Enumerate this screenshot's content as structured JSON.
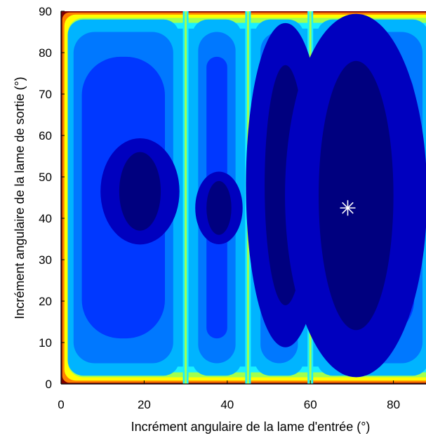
{
  "chart_data": {
    "type": "heatmap",
    "subtype": "filled-contour",
    "title": "",
    "xlabel": "Incrément angulaire de la lame d'entrée (°)",
    "ylabel": "Incrément angulaire de la lame de sortie (°)",
    "xlim": [
      0,
      90
    ],
    "ylim": [
      0,
      90
    ],
    "x_ticks": [
      0,
      20,
      40,
      60,
      80
    ],
    "y_ticks": [
      0,
      10,
      20,
      30,
      40,
      50,
      60,
      70,
      80,
      90
    ],
    "colormap": "jet",
    "grid": false,
    "legend": "none",
    "colors": {
      "level1": "#00007f",
      "level2": "#0000bf",
      "level3": "#0038ff",
      "level4": "#0078ff",
      "level5": "#00b4ff",
      "level6": "#18f0ff",
      "level7": "#a0ff50",
      "level8": "#ffff00",
      "level9": "#ff8000",
      "level10": "#800000"
    },
    "cells": [
      {
        "x_range": [
          0,
          30
        ],
        "inner_region": {
          "x": [
            14,
            24
          ],
          "y": [
            37,
            56
          ]
        }
      },
      {
        "x_range": [
          30,
          45
        ],
        "inner_region": {
          "x": [
            35,
            41
          ],
          "y": [
            36,
            49
          ]
        }
      },
      {
        "x_range": [
          45,
          60
        ],
        "inner_region": {
          "x": [
            49,
            59
          ],
          "y": [
            19,
            77
          ]
        }
      },
      {
        "x_range": [
          60,
          90
        ],
        "inner_region": {
          "x": [
            62,
            80
          ],
          "y": [
            13,
            78
          ]
        }
      }
    ],
    "cell_boundaries_x": [
      30,
      45,
      60
    ],
    "optimum_marker": {
      "x": 69,
      "y": 42.5,
      "symbol": "asterisk",
      "color": "#ffffff"
    }
  }
}
